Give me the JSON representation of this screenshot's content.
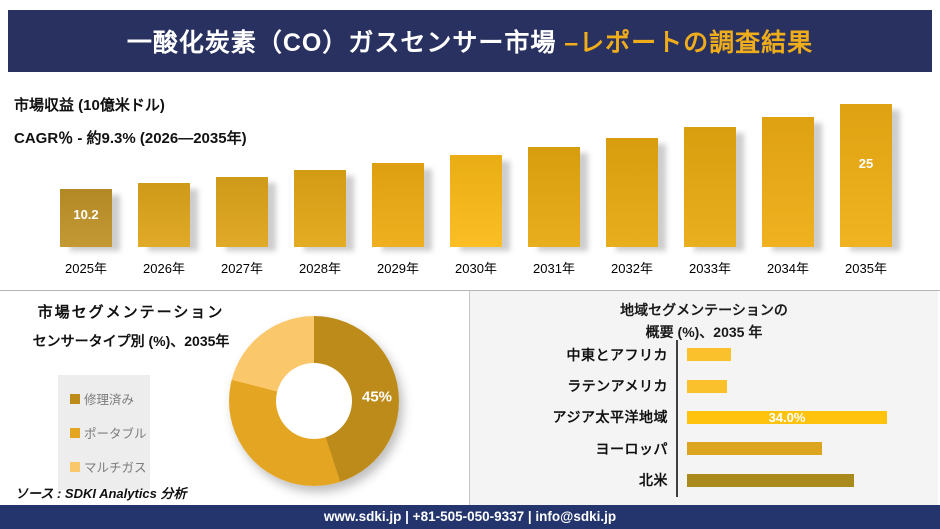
{
  "header": {
    "title_main": "一酸化炭素（CO）ガスセンサー市場 ",
    "title_accent": "–レポートの調査結果"
  },
  "revenue": {
    "title": "市場収益 (10億米ドル)",
    "cagr": "CAGR％ - 約9.3% (2026―2035年)"
  },
  "segmentation": {
    "title_line1": "市場セグメンテーション",
    "title_line2": "センサータイプ別 (%)、2035年"
  },
  "region": {
    "title_line1": "地域セグメンテーションの",
    "title_line2": "概要 (%)、2035 年"
  },
  "source": "ソース : SDKI Analytics 分析",
  "footer": "www.sdki.jp | +81-505-050-9337 | info@sdki.jp",
  "accent_colors": {
    "header_navy": "#28315F",
    "footer_navy": "#24356E",
    "gold": "#EFAC1B"
  },
  "chart_data": [
    {
      "type": "bar",
      "orientation": "vertical",
      "title": "市場収益 (10億米ドル)",
      "subtitle": "CAGR％ - 約9.3% (2026―2035年)",
      "categories": [
        "2025年",
        "2026年",
        "2027年",
        "2028年",
        "2029年",
        "2030年",
        "2031年",
        "2032年",
        "2033年",
        "2034年",
        "2035年"
      ],
      "values": [
        10.2,
        11.2,
        12.2,
        13.4,
        14.6,
        16.0,
        17.5,
        19.1,
        20.9,
        22.8,
        25
      ],
      "data_labels": [
        "10.2",
        "",
        "",
        "",
        "",
        "",
        "",
        "",
        "",
        "",
        "25"
      ],
      "bar_colors": [
        "#C09328",
        "#DFA51B",
        "#DFA51B",
        "#E2A715",
        "#EEAB12",
        "#FBBA16",
        "#E7A90F",
        "#E7A90F",
        "#E8AA10",
        "#EFAD13",
        "#EFAE13"
      ],
      "ylim": [
        0,
        25
      ],
      "grid": false,
      "legend": "none"
    },
    {
      "type": "pie",
      "donut": true,
      "title": "市場セグメンテーション センサータイプ別 (%)、2035年",
      "labels": [
        "修理済み",
        "ポータブル",
        "マルチガス"
      ],
      "values": [
        45,
        34,
        21
      ],
      "colors": [
        "#BD8B1A",
        "#E4A622",
        "#FAC76B"
      ],
      "shown_label": "45%",
      "legend_position": "left"
    },
    {
      "type": "bar",
      "orientation": "horizontal",
      "title": "地域セグメンテーションの概要 (%)、2035 年",
      "categories": [
        "中東とアフリカ",
        "ラテンアメリカ",
        "アジア太平洋地域",
        "ヨーロッパ",
        "北米"
      ],
      "values": [
        7.5,
        6.8,
        34.0,
        23.0,
        28.4
      ],
      "data_labels": [
        "",
        "",
        "34.0%",
        "",
        ""
      ],
      "bar_colors": [
        "#FBC12D",
        "#FBC12D",
        "#FFC30D",
        "#DCA41F",
        "#AA8A1A"
      ],
      "xlim": [
        0,
        36
      ],
      "grid": false,
      "legend": "none"
    }
  ]
}
